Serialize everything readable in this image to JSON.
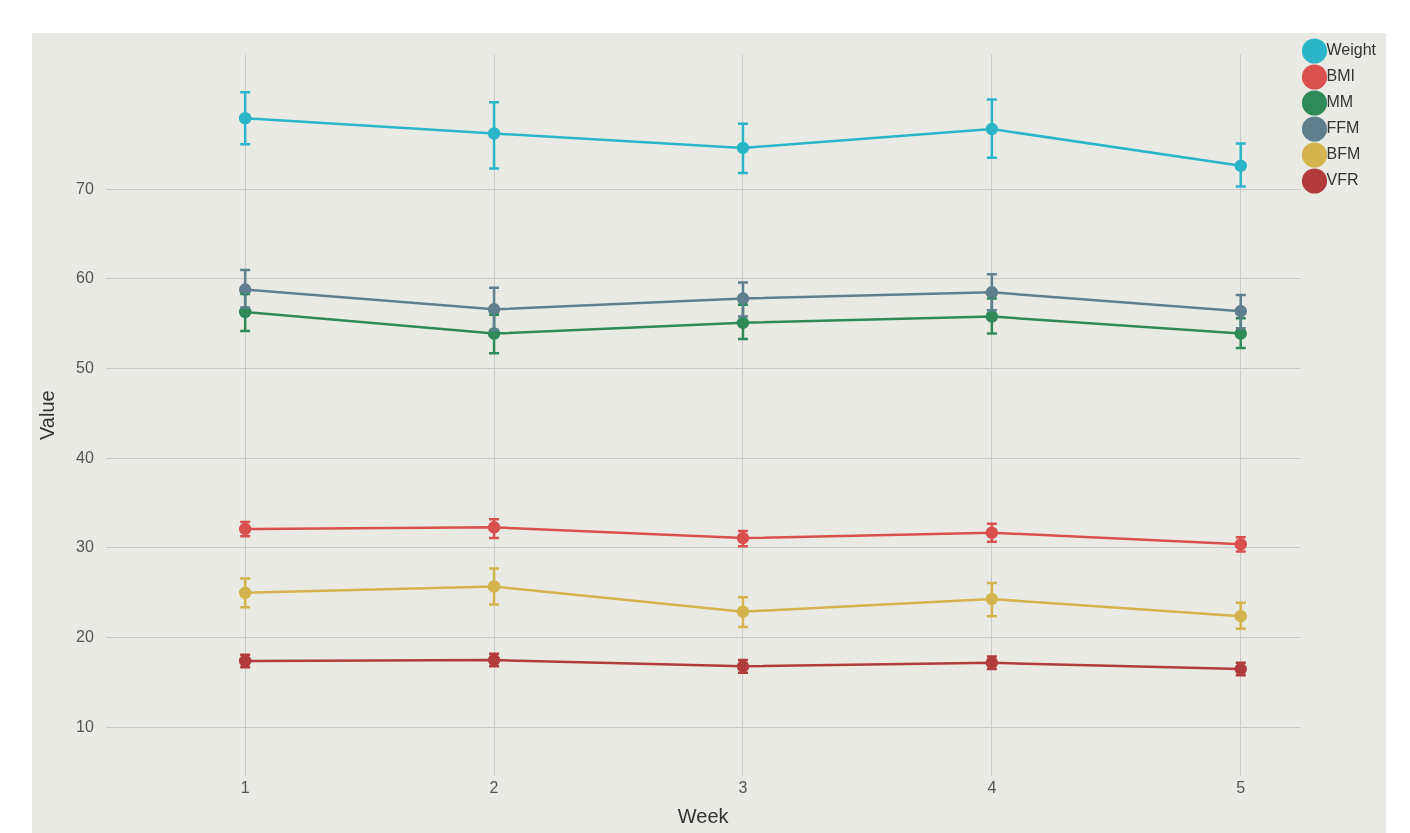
{
  "chart_data": {
    "type": "line",
    "xlabel": "Week",
    "ylabel": "Value",
    "x": [
      1,
      2,
      3,
      4,
      5
    ],
    "xlim": [
      0.44,
      5.24
    ],
    "xticks": [
      1,
      2,
      3,
      4,
      5
    ],
    "ylim": [
      4.6,
      85
    ],
    "yticks": [
      10,
      20,
      30,
      40,
      50,
      60,
      70
    ],
    "grid": true,
    "legend": "top right",
    "marker": "circle",
    "line_style": "solid",
    "series": [
      {
        "name": "Weight",
        "color": "#2bb5c8",
        "values": [
          77.9,
          76.2,
          74.6,
          76.7,
          72.6
        ],
        "errors": [
          [
            75.0,
            80.8
          ],
          [
            72.3,
            79.7
          ],
          [
            71.8,
            77.3
          ],
          [
            73.5,
            80.0
          ],
          [
            70.3,
            75.1
          ]
        ]
      },
      {
        "name": "BMI",
        "color": "#d9504f",
        "values": [
          32.1,
          32.3,
          31.1,
          31.7,
          30.4
        ],
        "errors": [
          [
            31.3,
            32.9
          ],
          [
            31.1,
            33.2
          ],
          [
            30.2,
            31.9
          ],
          [
            30.7,
            32.7
          ],
          [
            29.6,
            31.2
          ]
        ]
      },
      {
        "name": "MM",
        "color": "#2e8a57",
        "values": [
          56.3,
          53.9,
          55.1,
          55.8,
          53.9
        ],
        "errors": [
          [
            54.2,
            58.3
          ],
          [
            51.7,
            56.0
          ],
          [
            53.3,
            57.1
          ],
          [
            53.9,
            57.8
          ],
          [
            52.3,
            55.6
          ]
        ]
      },
      {
        "name": "FFM",
        "color": "#5f7f8e",
        "values": [
          58.8,
          56.6,
          57.8,
          58.5,
          56.4
        ],
        "errors": [
          [
            56.8,
            61.0
          ],
          [
            54.3,
            59.0
          ],
          [
            55.8,
            59.6
          ],
          [
            56.5,
            60.5
          ],
          [
            54.5,
            58.2
          ]
        ]
      },
      {
        "name": "BFM",
        "color": "#d3b34b",
        "values": [
          25.0,
          25.7,
          22.9,
          24.3,
          22.4
        ],
        "errors": [
          [
            23.4,
            26.6
          ],
          [
            23.7,
            27.7
          ],
          [
            21.2,
            24.5
          ],
          [
            22.4,
            26.1
          ],
          [
            21.0,
            23.9
          ]
        ]
      },
      {
        "name": "VFR",
        "color": "#b23b3b",
        "values": [
          17.4,
          17.5,
          16.8,
          17.2,
          16.5
        ],
        "errors": [
          [
            16.7,
            18.1
          ],
          [
            16.8,
            18.2
          ],
          [
            16.1,
            17.5
          ],
          [
            16.5,
            17.9
          ],
          [
            15.8,
            17.2
          ]
        ]
      }
    ]
  }
}
